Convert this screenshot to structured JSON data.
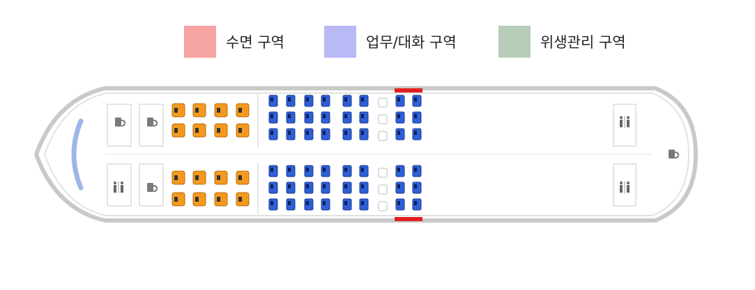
{
  "legend": {
    "items": [
      {
        "label": "수면 구역",
        "color": "#f5a3a3"
      },
      {
        "label": "업무/대화 구역",
        "color": "#b9b9f6"
      },
      {
        "label": "위생관리 구역",
        "color": "#b8cdb8"
      }
    ]
  },
  "colors": {
    "hull": "#c9c9c9",
    "sleep_seat": "#f39a1e",
    "work_seat": "#2e5fd8",
    "partition": "#e02020",
    "cockpit": "#9bb7e6"
  },
  "icons": {
    "galley": "cup-icon",
    "lavatory": "restroom-icon",
    "cockpit_window": "cockpit-window-icon",
    "small_seat": "jump-seat-icon"
  }
}
